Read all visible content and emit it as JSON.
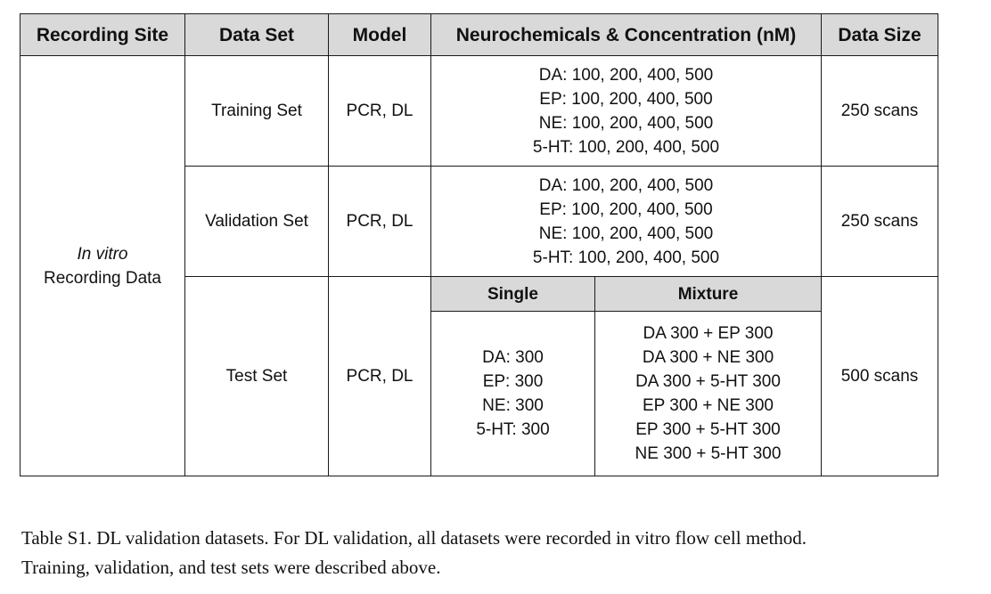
{
  "table": {
    "headers": {
      "recording_site": "Recording Site",
      "data_set": "Data Set",
      "model": "Model",
      "neurochemicals": "Neurochemicals & Concentration (nM)",
      "data_size": "Data Size"
    },
    "recording_site": {
      "line1": "In vitro",
      "line2": "Recording Data"
    },
    "rows": {
      "training": {
        "set": "Training Set",
        "model": "PCR, DL",
        "concentrations": [
          "DA:  100, 200, 400, 500",
          "EP:  100, 200, 400, 500",
          "NE:  100, 200, 400, 500",
          "5-HT:  100, 200, 400, 500"
        ],
        "size": "250 scans"
      },
      "validation": {
        "set": "Validation Set",
        "model": "PCR, DL",
        "concentrations": [
          "DA:  100, 200, 400, 500",
          "EP:  100, 200, 400, 500",
          "NE:  100, 200, 400, 500",
          "5-HT:  100, 200, 400, 500"
        ],
        "size": "250 scans"
      },
      "test": {
        "set": "Test Set",
        "model": "PCR, DL",
        "single_header": "Single",
        "mixture_header": "Mixture",
        "single": [
          "DA:  300",
          "EP:  300",
          "NE:  300",
          "5-HT:  300"
        ],
        "mixture": [
          "DA 300 + EP 300",
          "DA 300 + NE 300",
          "DA 300 + 5-HT 300",
          "EP 300 + NE 300",
          "EP 300 + 5-HT 300",
          "NE 300 + 5-HT 300"
        ],
        "size": "500 scans"
      }
    }
  },
  "caption": {
    "line1": "Table S1. DL validation datasets. For DL validation, all datasets were recorded in vitro flow cell method.",
    "line2": "Training, validation, and test sets were described above."
  }
}
